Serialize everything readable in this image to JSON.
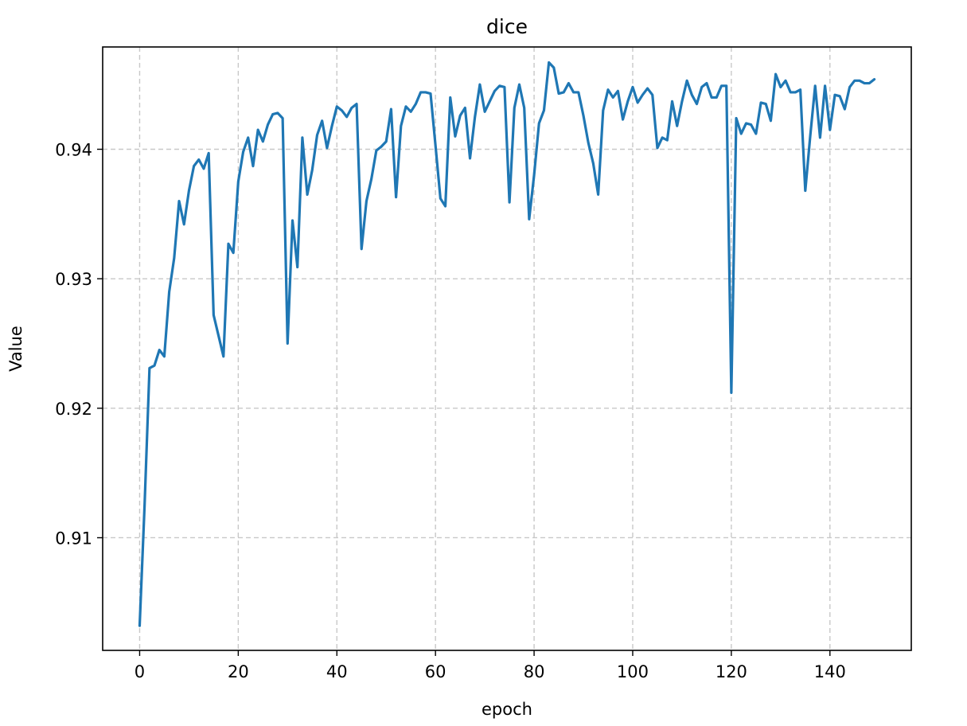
{
  "chart_data": {
    "type": "line",
    "title": "dice",
    "xlabel": "epoch",
    "ylabel": "Value",
    "xlim": [
      -7.5,
      156.5
    ],
    "ylim": [
      0.9013,
      0.9479
    ],
    "xticks": [
      0,
      20,
      40,
      60,
      80,
      100,
      120,
      140
    ],
    "yticks": [
      0.91,
      0.92,
      0.93,
      0.94
    ],
    "ytick_labels": [
      "0.91",
      "0.92",
      "0.93",
      "0.94"
    ],
    "grid": true,
    "series": [
      {
        "color": "#1f77b4",
        "x": [
          0,
          1,
          2,
          3,
          4,
          5,
          6,
          7,
          8,
          9,
          10,
          11,
          12,
          13,
          14,
          15,
          16,
          17,
          18,
          19,
          20,
          21,
          22,
          23,
          24,
          25,
          26,
          27,
          28,
          29,
          30,
          31,
          32,
          33,
          34,
          35,
          36,
          37,
          38,
          39,
          40,
          41,
          42,
          43,
          44,
          45,
          46,
          47,
          48,
          49,
          50,
          51,
          52,
          53,
          54,
          55,
          56,
          57,
          58,
          59,
          60,
          61,
          62,
          63,
          64,
          65,
          66,
          67,
          68,
          69,
          70,
          71,
          72,
          73,
          74,
          75,
          76,
          77,
          78,
          79,
          80,
          81,
          82,
          83,
          84,
          85,
          86,
          87,
          88,
          89,
          90,
          91,
          92,
          93,
          94,
          95,
          96,
          97,
          98,
          99,
          100,
          101,
          102,
          103,
          104,
          105,
          106,
          107,
          108,
          109,
          110,
          111,
          112,
          113,
          114,
          115,
          116,
          117,
          118,
          119,
          120,
          121,
          122,
          123,
          124,
          125,
          126,
          127,
          128,
          129,
          130,
          131,
          132,
          133,
          134,
          135,
          136,
          137,
          138,
          139,
          140,
          141,
          142,
          143,
          144,
          145,
          146,
          147,
          148,
          149
        ],
        "values": [
          0.9032,
          0.9125,
          0.9231,
          0.9233,
          0.9245,
          0.924,
          0.929,
          0.9316,
          0.936,
          0.9342,
          0.9368,
          0.9387,
          0.9392,
          0.9385,
          0.9397,
          0.9272,
          0.9256,
          0.924,
          0.9327,
          0.932,
          0.9375,
          0.9398,
          0.9409,
          0.9387,
          0.9415,
          0.9406,
          0.9419,
          0.9427,
          0.9428,
          0.9424,
          0.925,
          0.9345,
          0.9309,
          0.9409,
          0.9365,
          0.9384,
          0.9411,
          0.9422,
          0.9401,
          0.9418,
          0.9433,
          0.943,
          0.9425,
          0.9432,
          0.9435,
          0.9323,
          0.936,
          0.9377,
          0.9399,
          0.9402,
          0.9406,
          0.9431,
          0.9363,
          0.9418,
          0.9433,
          0.9429,
          0.9435,
          0.9444,
          0.9444,
          0.9443,
          0.9403,
          0.9362,
          0.9356,
          0.944,
          0.941,
          0.9426,
          0.9432,
          0.9393,
          0.9425,
          0.945,
          0.9429,
          0.9437,
          0.9445,
          0.9449,
          0.9448,
          0.9359,
          0.9432,
          0.945,
          0.9432,
          0.9346,
          0.938,
          0.942,
          0.943,
          0.9467,
          0.9463,
          0.9443,
          0.9444,
          0.9451,
          0.9444,
          0.9444,
          0.9426,
          0.9405,
          0.9389,
          0.9365,
          0.943,
          0.9446,
          0.944,
          0.9445,
          0.9423,
          0.9437,
          0.9448,
          0.9436,
          0.9442,
          0.9447,
          0.9442,
          0.9401,
          0.9409,
          0.9407,
          0.9437,
          0.9418,
          0.9437,
          0.9453,
          0.9442,
          0.9435,
          0.9448,
          0.9451,
          0.944,
          0.944,
          0.9449,
          0.9449,
          0.9212,
          0.9424,
          0.9412,
          0.942,
          0.9419,
          0.9412,
          0.9436,
          0.9435,
          0.9422,
          0.9458,
          0.9448,
          0.9453,
          0.9444,
          0.9444,
          0.9446,
          0.9368,
          0.941,
          0.9449,
          0.9409,
          0.9449,
          0.9415,
          0.9442,
          0.9441,
          0.9431,
          0.9448,
          0.9453,
          0.9453,
          0.9451,
          0.9451,
          0.9454
        ]
      }
    ]
  }
}
